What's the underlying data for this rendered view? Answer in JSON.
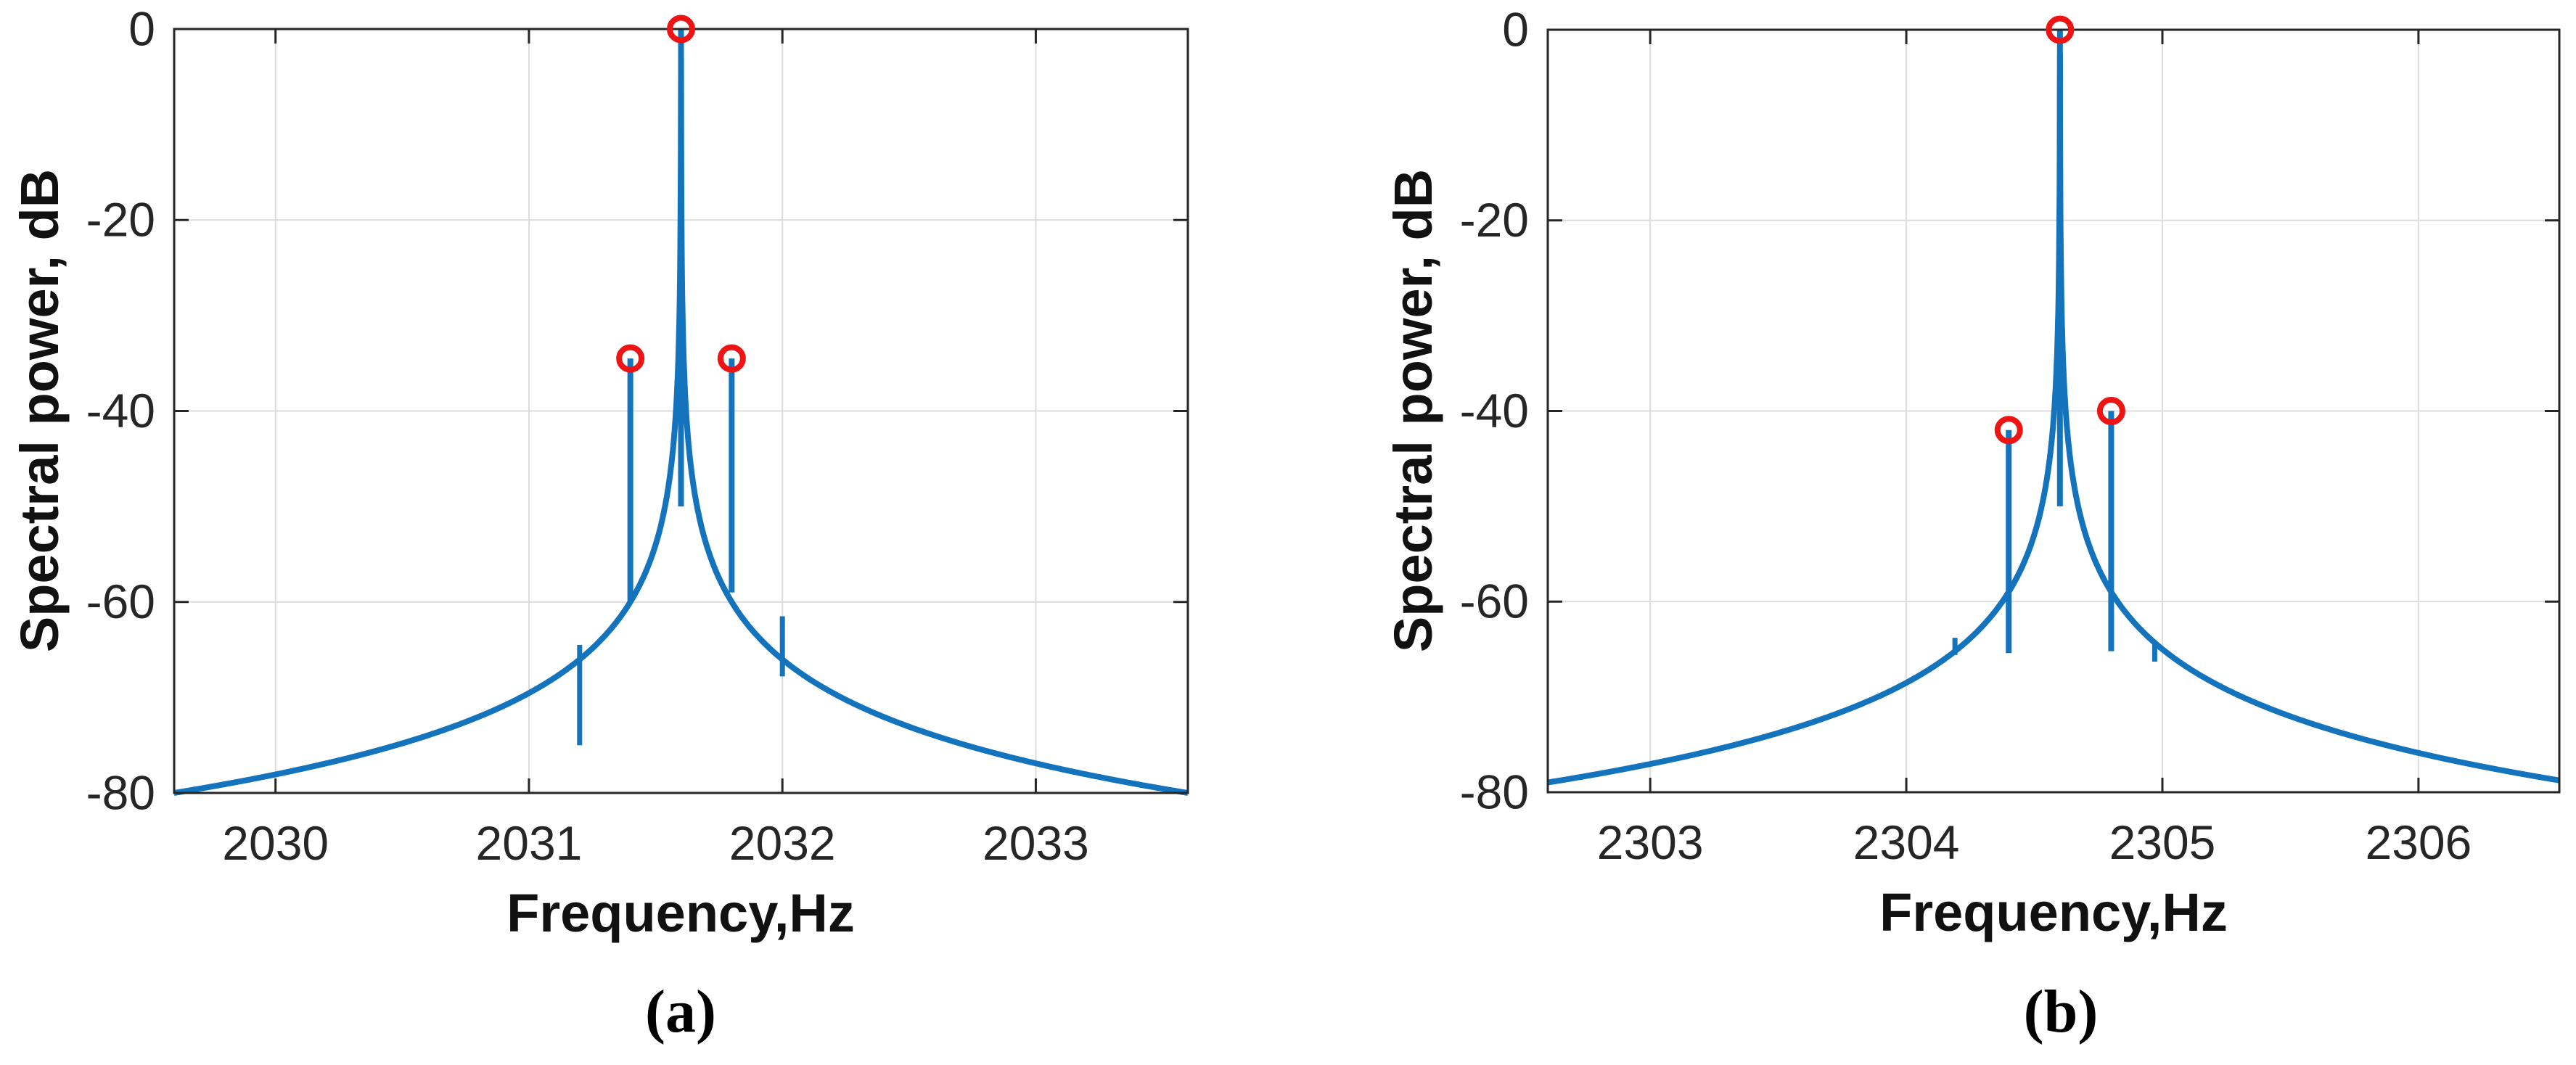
{
  "figure": {
    "background": "#ffffff",
    "description": "Two-panel spectral power plots with detected peaks marked by red circles"
  },
  "colors": {
    "line": "#1473bd",
    "marker": "#ef1414",
    "axis": "#262626",
    "grid": "#dcdcdc",
    "tick_label": "#262626",
    "axis_label": "#111111",
    "caption": "#000000"
  },
  "chart_data": [
    {
      "type": "line",
      "panel": "a",
      "caption": "(a)",
      "xlabel": "Frequency,Hz",
      "ylabel": "Spectral power, dB",
      "xlim": [
        2029.6,
        2033.6
      ],
      "ylim": [
        -80,
        0
      ],
      "xticks": [
        2030,
        2031,
        2032,
        2033
      ],
      "yticks": [
        0,
        -20,
        -40,
        -60,
        -80
      ],
      "grid": true,
      "legend": null,
      "envelope": {
        "center": 2031.6,
        "gamma": 0.0002,
        "peak_db": 0,
        "floor_db": -80
      },
      "stems": [
        {
          "x": 2031.4,
          "top": -34.5,
          "bottom": -60
        },
        {
          "x": 2031.6,
          "top": 0,
          "bottom": -50
        },
        {
          "x": 2031.8,
          "top": -34.5,
          "bottom": -59
        }
      ],
      "markers": [
        {
          "x": 2031.4,
          "y": -34.5
        },
        {
          "x": 2031.6,
          "y": 0
        },
        {
          "x": 2031.8,
          "y": -34.5
        }
      ],
      "spikes": [
        {
          "x": 2031.2,
          "from": -64.5,
          "to": -75
        },
        {
          "x": 2032.0,
          "from": -61.5,
          "to": -67.8
        }
      ]
    },
    {
      "type": "line",
      "panel": "b",
      "caption": "(b)",
      "xlabel": "Frequency,Hz",
      "ylabel": "Spectral power, dB",
      "xlim": [
        2302.6,
        2306.55
      ],
      "ylim": [
        -80,
        0
      ],
      "xticks": [
        2303,
        2304,
        2305,
        2306
      ],
      "yticks": [
        0,
        -20,
        -40,
        -60,
        -80
      ],
      "grid": true,
      "legend": null,
      "envelope": {
        "center": 2304.6,
        "gamma": 0.000225,
        "peak_db": 0,
        "floor_db": -80
      },
      "stems": [
        {
          "x": 2304.4,
          "top": -42,
          "bottom": -65.4
        },
        {
          "x": 2304.6,
          "top": 0,
          "bottom": -50
        },
        {
          "x": 2304.8,
          "top": -40,
          "bottom": -65.2
        }
      ],
      "markers": [
        {
          "x": 2304.4,
          "y": -42
        },
        {
          "x": 2304.6,
          "y": 0
        },
        {
          "x": 2304.8,
          "y": -40
        }
      ],
      "spikes": [
        {
          "x": 2304.19,
          "from": -63.8,
          "to": -65.6
        },
        {
          "x": 2304.97,
          "from": -64.3,
          "to": -66.3
        }
      ]
    }
  ]
}
